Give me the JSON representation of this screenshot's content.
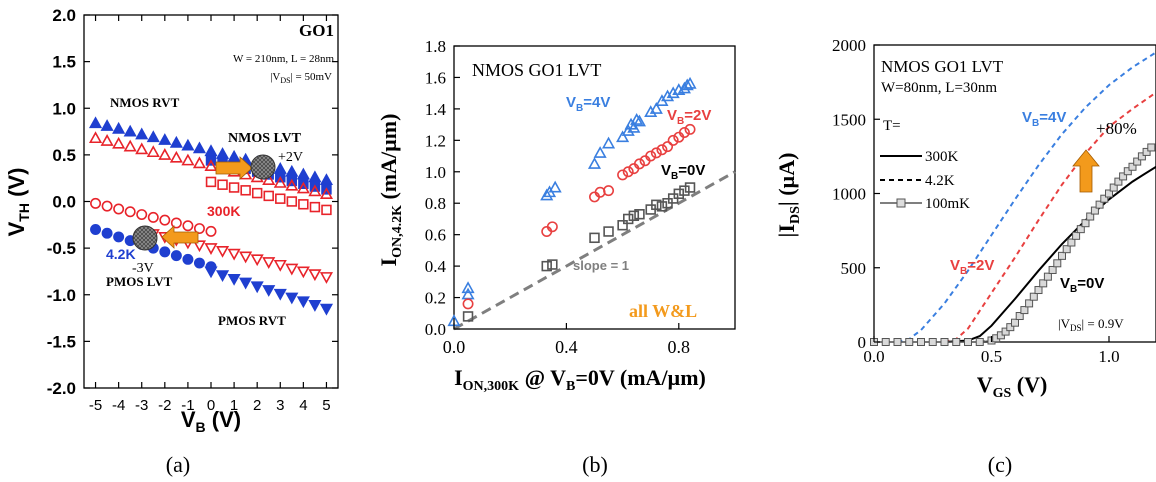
{
  "colors": {
    "blue": "#1f3fd0",
    "red": "#e8232a",
    "lblue": "#3a7fe0",
    "lred": "#e84040",
    "gray": "#555555",
    "orange": "#f39a1c",
    "dgray": "#7f7f7f"
  },
  "panels": {
    "a": "(a)",
    "b": "(b)",
    "c": "(c)"
  },
  "chart_data": [
    {
      "type": "scatter",
      "panel": "a",
      "xlabel_main": "V",
      "xlabel_sub": "B",
      "xlabel_unit": " (V)",
      "ylabel_main": "V",
      "ylabel_sub": "TH",
      "ylabel_unit": " (V)",
      "xlim": [
        -5.5,
        5.5
      ],
      "ylim": [
        -2.0,
        2.0
      ],
      "xticks": [
        -5,
        -4,
        -3,
        -2,
        -1,
        0,
        1,
        2,
        3,
        4,
        5
      ],
      "yticks": [
        2.0,
        1.5,
        1.0,
        0.5,
        0.0,
        -0.5,
        -1.0,
        -1.5,
        -2.0
      ],
      "ytick_labels": [
        "2.0",
        "1.5",
        "1.0",
        "0.5",
        "0.0",
        "-0.5",
        "-1.0",
        "-1.5",
        "-2.0"
      ],
      "annotations": {
        "go1": "GO1",
        "dims": "W = 210nm, L = 28nm",
        "vds_pre": "|V",
        "vds_sub": "DS",
        "vds_post": "| = 50mV",
        "nmos_rvt": "NMOS RVT",
        "nmos_lvt": "NMOS LVT",
        "plus2v": "+2V",
        "t300": "300K",
        "t42": "4.2K",
        "minus3v": "-3V",
        "pmos_lvt": "PMOS LVT",
        "pmos_rvt": "PMOS RVT"
      },
      "series": [
        {
          "name": "NMOS RVT",
          "marker": "tri-up-filled",
          "color": "blue",
          "x": [
            -5,
            -4.5,
            -4,
            -3.5,
            -3,
            -2.5,
            -2,
            -1.5,
            -1,
            -0.5,
            0,
            0.5,
            1,
            1.5,
            2,
            2.5,
            3,
            3.5,
            4,
            4.5,
            5
          ],
          "y": [
            0.84,
            0.81,
            0.78,
            0.75,
            0.72,
            0.69,
            0.66,
            0.63,
            0.6,
            0.57,
            0.54,
            0.51,
            0.48,
            0.45,
            0.42,
            0.39,
            0.35,
            0.32,
            0.29,
            0.26,
            0.23
          ]
        },
        {
          "name": "NMOS LVT 4.2K",
          "marker": "square-filled",
          "color": "blue",
          "x": [
            0,
            0.5,
            1,
            1.5,
            2,
            2.5,
            3,
            3.5,
            4,
            4.5,
            5
          ],
          "y": [
            0.44,
            0.41,
            0.38,
            0.35,
            0.32,
            0.29,
            0.26,
            0.22,
            0.19,
            0.16,
            0.13
          ]
        },
        {
          "name": "NMOS RVT 300K",
          "marker": "tri-up-open",
          "color": "red",
          "x": [
            -5,
            -4.5,
            -4,
            -3.5,
            -3,
            -2.5,
            -2,
            -1.5,
            -1,
            -0.5,
            0,
            0.5,
            1,
            1.5,
            2,
            2.5,
            3,
            3.5,
            4,
            4.5,
            5
          ],
          "y": [
            0.68,
            0.65,
            0.62,
            0.59,
            0.56,
            0.53,
            0.5,
            0.47,
            0.44,
            0.41,
            0.38,
            0.35,
            0.32,
            0.29,
            0.26,
            0.23,
            0.2,
            0.17,
            0.14,
            0.11,
            0.08
          ]
        },
        {
          "name": "NMOS LVT 300K",
          "marker": "square-open",
          "color": "red",
          "x": [
            0,
            0.5,
            1,
            1.5,
            2,
            2.5,
            3,
            3.5,
            4,
            4.5,
            5
          ],
          "y": [
            0.21,
            0.18,
            0.15,
            0.12,
            0.09,
            0.06,
            0.03,
            0.0,
            -0.03,
            -0.06,
            -0.09
          ]
        },
        {
          "name": "PMOS LVT 300K",
          "marker": "circle-open",
          "color": "red",
          "x": [
            -5,
            -4.5,
            -4,
            -3.5,
            -3,
            -2.5,
            -2,
            -1.5,
            -1,
            -0.5,
            0
          ],
          "y": [
            -0.02,
            -0.05,
            -0.08,
            -0.11,
            -0.14,
            -0.17,
            -0.2,
            -0.23,
            -0.26,
            -0.29,
            -0.32
          ]
        },
        {
          "name": "PMOS RVT 300K",
          "marker": "tri-down-open",
          "color": "red",
          "x": [
            -2.5,
            -2,
            -1.5,
            -1,
            -0.5,
            0,
            0.5,
            1,
            1.5,
            2,
            2.5,
            3,
            3.5,
            4,
            4.5,
            5
          ],
          "y": [
            -0.35,
            -0.38,
            -0.41,
            -0.44,
            -0.47,
            -0.5,
            -0.53,
            -0.56,
            -0.59,
            -0.62,
            -0.65,
            -0.68,
            -0.72,
            -0.75,
            -0.78,
            -0.81
          ]
        },
        {
          "name": "PMOS LVT 4.2K",
          "marker": "circle-filled",
          "color": "blue",
          "x": [
            -5,
            -4.5,
            -4,
            -3.5,
            -3,
            -2.5,
            -2,
            -1.5,
            -1,
            -0.5,
            0
          ],
          "y": [
            -0.3,
            -0.34,
            -0.38,
            -0.42,
            -0.46,
            -0.5,
            -0.54,
            -0.58,
            -0.62,
            -0.66,
            -0.7
          ]
        },
        {
          "name": "PMOS RVT 4.2K",
          "marker": "tri-down-filled",
          "color": "blue",
          "x": [
            0,
            0.5,
            1,
            1.5,
            2,
            2.5,
            3,
            3.5,
            4,
            4.5,
            5
          ],
          "y": [
            -0.75,
            -0.79,
            -0.83,
            -0.87,
            -0.91,
            -0.95,
            -0.99,
            -1.03,
            -1.07,
            -1.11,
            -1.15
          ]
        }
      ]
    },
    {
      "type": "scatter",
      "panel": "b",
      "xlabel_i": "I",
      "xlabel_sub": "ON,300K",
      "xlabel_mid": " @ V",
      "xlabel_sub2": "B",
      "xlabel_end": "=0V  (mA/µm)",
      "ylabel_i": "I",
      "ylabel_sub": "ON,4.2K",
      "ylabel_end": " (mA/µm)",
      "xlim": [
        0,
        1.0
      ],
      "ylim": [
        0,
        1.8
      ],
      "xticks": [
        0.0,
        0.4,
        0.8
      ],
      "xtick_labels": [
        "0.0",
        "0.4",
        "0.8"
      ],
      "yticks": [
        0,
        0.2,
        0.4,
        0.6,
        0.8,
        1.0,
        1.2,
        1.4,
        1.6,
        1.8
      ],
      "ytick_labels": [
        "0.0",
        "0.2",
        "0.4",
        "0.6",
        "0.8",
        "1.0",
        "1.2",
        "1.4",
        "1.6",
        "1.8"
      ],
      "annotations": {
        "title": "NMOS GO1 LVT",
        "vb4_pre": "V",
        "vb4_sub": "B",
        "vb4_post": "=4V",
        "vb2_pre": "V",
        "vb2_sub": "B",
        "vb2_post": "=2V",
        "vb0_pre": "V",
        "vb0_sub": "B",
        "vb0_post": "=0V",
        "slope": "slope = 1",
        "allwl": "all W&L"
      },
      "reference_line": {
        "x": [
          0,
          1.0
        ],
        "y": [
          0,
          1.0
        ]
      },
      "series": [
        {
          "name": "VB=4V",
          "marker": "tri-up-open",
          "color": "lblue",
          "x": [
            0.0,
            0.05,
            0.05,
            0.33,
            0.34,
            0.36,
            0.5,
            0.52,
            0.55,
            0.6,
            0.62,
            0.63,
            0.64,
            0.65,
            0.66,
            0.7,
            0.72,
            0.74,
            0.76,
            0.78,
            0.8,
            0.82,
            0.83,
            0.84
          ],
          "y": [
            0.05,
            0.22,
            0.26,
            0.85,
            0.87,
            0.9,
            1.05,
            1.12,
            1.18,
            1.22,
            1.26,
            1.3,
            1.28,
            1.33,
            1.32,
            1.38,
            1.4,
            1.45,
            1.48,
            1.5,
            1.52,
            1.53,
            1.55,
            1.56
          ]
        },
        {
          "name": "VB=2V",
          "marker": "circle-open",
          "color": "lred",
          "x": [
            0.05,
            0.33,
            0.35,
            0.5,
            0.52,
            0.55,
            0.6,
            0.62,
            0.64,
            0.66,
            0.68,
            0.7,
            0.72,
            0.74,
            0.76,
            0.78,
            0.8,
            0.82,
            0.84
          ],
          "y": [
            0.16,
            0.62,
            0.65,
            0.84,
            0.87,
            0.88,
            0.98,
            1.0,
            1.02,
            1.05,
            1.07,
            1.1,
            1.12,
            1.14,
            1.16,
            1.2,
            1.22,
            1.25,
            1.27
          ]
        },
        {
          "name": "VB=0V",
          "marker": "square-open",
          "color": "gray",
          "x": [
            0.05,
            0.33,
            0.35,
            0.5,
            0.55,
            0.6,
            0.62,
            0.64,
            0.66,
            0.7,
            0.72,
            0.74,
            0.76,
            0.78,
            0.8,
            0.82,
            0.84
          ],
          "y": [
            0.08,
            0.4,
            0.41,
            0.58,
            0.62,
            0.66,
            0.7,
            0.72,
            0.73,
            0.76,
            0.79,
            0.78,
            0.8,
            0.83,
            0.86,
            0.88,
            0.9
          ]
        }
      ]
    },
    {
      "type": "line",
      "panel": "c",
      "xlabel_main": "V",
      "xlabel_sub": "GS",
      "xlabel_unit": " (V)",
      "ylabel_pre": "|I",
      "ylabel_sub": "DS",
      "ylabel_end": "| (µA)",
      "xlim": [
        0,
        1.2
      ],
      "ylim": [
        0,
        2000
      ],
      "xticks": [
        0.0,
        0.5,
        1.0
      ],
      "xtick_labels": [
        "0.0",
        "0.5",
        "1.0"
      ],
      "yticks": [
        0,
        500,
        1000,
        1500,
        2000
      ],
      "ytick_labels": [
        "0",
        "500",
        "1000",
        "1500",
        "2000"
      ],
      "annotations": {
        "title": "NMOS GO1 LVT",
        "dims": "W=80nm, L=30nm",
        "tlabel": "T=",
        "leg300": "300K",
        "leg42": "4.2K",
        "leg100m": "100mK",
        "vb4_pre": "V",
        "vb4_sub": "B",
        "vb4_post": "=4V",
        "vb2_pre": "V",
        "vb2_sub": "B",
        "vb2_post": "=2V",
        "vb0_pre": "V",
        "vb0_sub": "B",
        "vb0_post": "=0V",
        "plus80": "+80%",
        "vds_pre": "|V",
        "vds_sub": "DS",
        "vds_post": "| = 0.9V"
      },
      "series": [
        {
          "name": "VB=4V 4.2K",
          "style": "dashed",
          "color": "lblue",
          "x": [
            0.1,
            0.15,
            0.2,
            0.3,
            0.4,
            0.5,
            0.6,
            0.7,
            0.8,
            0.9,
            1.0,
            1.1,
            1.2
          ],
          "y": [
            0,
            20,
            80,
            260,
            480,
            720,
            960,
            1190,
            1400,
            1580,
            1730,
            1850,
            1950
          ]
        },
        {
          "name": "VB=2V 4.2K",
          "style": "dashed",
          "color": "lred",
          "x": [
            0.3,
            0.35,
            0.4,
            0.5,
            0.6,
            0.7,
            0.8,
            0.9,
            1.0,
            1.1,
            1.2
          ],
          "y": [
            0,
            20,
            90,
            330,
            570,
            820,
            1060,
            1270,
            1450,
            1570,
            1680
          ]
        },
        {
          "name": "VB=0V 300K",
          "style": "solid",
          "color": "black",
          "x": [
            0.3,
            0.4,
            0.45,
            0.5,
            0.6,
            0.7,
            0.8,
            0.9,
            1.0,
            1.1,
            1.2
          ],
          "y": [
            0,
            10,
            40,
            110,
            290,
            480,
            660,
            820,
            960,
            1080,
            1180
          ]
        },
        {
          "name": "VB=0V 4.2K",
          "style": "dashed",
          "color": "black",
          "x": [
            0.45,
            0.5,
            0.55,
            0.6,
            0.7,
            0.8,
            0.9,
            1.0,
            1.1,
            1.2
          ],
          "y": [
            0,
            10,
            50,
            130,
            350,
            580,
            800,
            1000,
            1180,
            1330
          ]
        },
        {
          "name": "VB=0V 100mK",
          "style": "markers-squares",
          "color": "gray",
          "x": [
            0.0,
            0.05,
            0.1,
            0.15,
            0.2,
            0.25,
            0.3,
            0.35,
            0.4,
            0.45,
            0.5,
            0.52,
            0.54,
            0.56,
            0.58,
            0.6,
            0.62,
            0.64,
            0.66,
            0.68,
            0.7,
            0.72,
            0.74,
            0.76,
            0.78,
            0.8,
            0.82,
            0.84,
            0.86,
            0.88,
            0.9,
            0.92,
            0.94,
            0.96,
            0.98,
            1.0,
            1.02,
            1.04,
            1.06,
            1.08,
            1.1,
            1.12,
            1.14,
            1.16,
            1.18
          ],
          "y": [
            0,
            0,
            0,
            0,
            0,
            0,
            0,
            0,
            0,
            0,
            10,
            25,
            45,
            70,
            100,
            130,
            175,
            215,
            260,
            305,
            350,
            395,
            440,
            485,
            530,
            580,
            625,
            670,
            715,
            760,
            800,
            845,
            885,
            925,
            965,
            1000,
            1040,
            1080,
            1115,
            1150,
            1180,
            1215,
            1250,
            1280,
            1310
          ]
        }
      ]
    }
  ]
}
